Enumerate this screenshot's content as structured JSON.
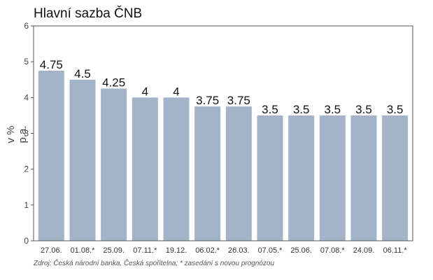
{
  "chart_data": {
    "type": "bar",
    "title": "Hlavní sazba ČNB",
    "ylabel": "v % p.a.",
    "xlabel": "",
    "ylim": [
      0,
      6
    ],
    "yticks": [
      "0",
      "1",
      "2",
      "3",
      "4",
      "5",
      "6"
    ],
    "categories": [
      "27.06.",
      "01.08.*",
      "25.09.",
      "07.11.*",
      "19.12.",
      "06.02.*",
      "26.03.",
      "07.05.*",
      "25.06.",
      "07.08.*",
      "24.09.",
      "06.11.*"
    ],
    "values": [
      4.75,
      4.5,
      4.25,
      4,
      4,
      3.75,
      3.75,
      3.5,
      3.5,
      3.5,
      3.5,
      3.5
    ],
    "value_labels": [
      "4.75",
      "4.5",
      "4.25",
      "4",
      "4",
      "3.75",
      "3.75",
      "3.5",
      "3.5",
      "3.5",
      "3.5",
      "3.5"
    ],
    "bar_color": "#a3b3c8",
    "grid": false,
    "legend": "none",
    "source": "Zdroj: Česká národní banka, Česká spořitelna; * zasedání s novou prognózou"
  }
}
